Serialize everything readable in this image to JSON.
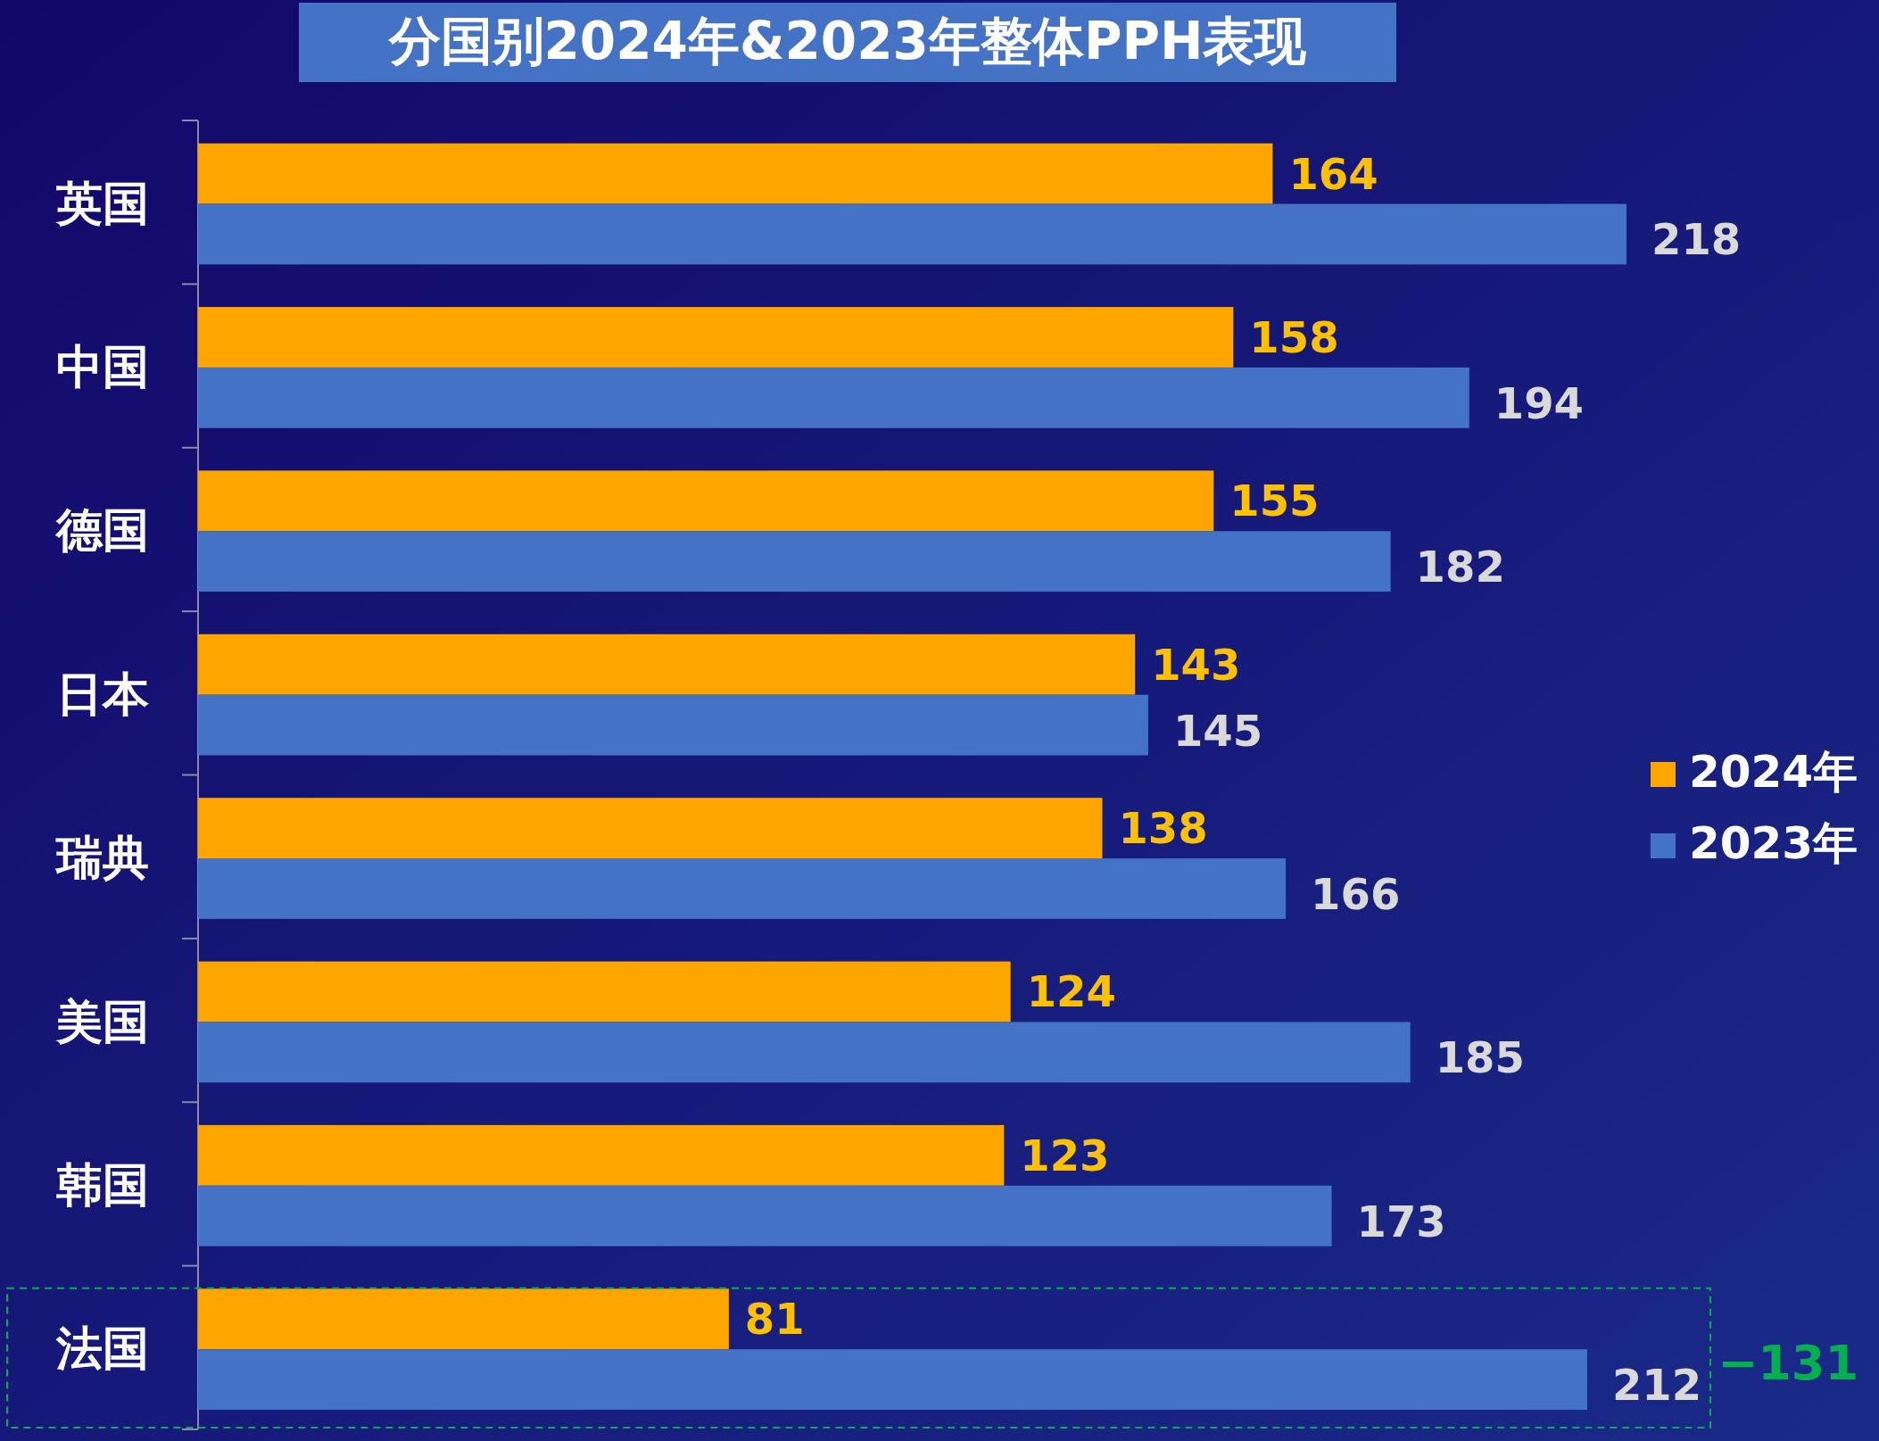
{
  "chart_data": {
    "type": "bar",
    "orientation": "horizontal",
    "title": "分国别2024年&2023年整体PPH表现",
    "categories": [
      "英国",
      "中国",
      "德国",
      "日本",
      "瑞典",
      "美国",
      "韩国",
      "法国"
    ],
    "series": [
      {
        "name": "2024年",
        "color": "#ffa500",
        "values": [
          164,
          158,
          155,
          143,
          138,
          124,
          123,
          81
        ]
      },
      {
        "name": "2023年",
        "color": "#4472c4",
        "values": [
          218,
          194,
          182,
          145,
          166,
          185,
          173,
          212
        ]
      }
    ],
    "data_labels": true,
    "legend": "right",
    "annotations": [
      "−131"
    ]
  }
}
